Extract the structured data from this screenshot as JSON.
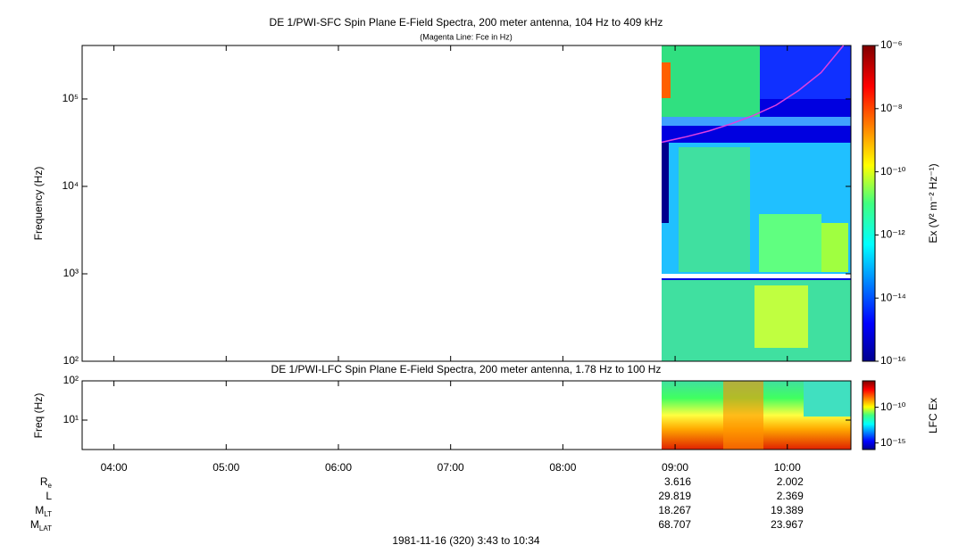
{
  "chart_data": [
    {
      "type": "spectrogram",
      "title": "DE 1/PWI-SFC  Spin Plane E-Field Spectra, 200 meter antenna, 104 Hz to 409 kHz",
      "subtitle": "(Magenta Line: Fce in Hz)",
      "y_label": "Frequency (Hz)",
      "log_y": true,
      "ylim": [
        100,
        409000
      ],
      "yticks": [
        {
          "value": 100,
          "label": "10²"
        },
        {
          "value": 1000,
          "label": "10³"
        },
        {
          "value": 10000,
          "label": "10⁴"
        },
        {
          "value": 100000,
          "label": "10⁵"
        }
      ],
      "colorbar_label": "Ex (V² m⁻² Hz⁻¹)",
      "colorbar_lim": [
        1e-16,
        1e-06
      ],
      "colorbar_ticks": [
        {
          "value": 1e-06,
          "label": "10⁻⁶"
        },
        {
          "value": 1e-08,
          "label": "10⁻⁸"
        },
        {
          "value": 1e-10,
          "label": "10⁻¹⁰"
        },
        {
          "value": 1e-12,
          "label": "10⁻¹²"
        },
        {
          "value": 1e-14,
          "label": "10⁻¹⁴"
        },
        {
          "value": 1e-16,
          "label": "10⁻¹⁶"
        }
      ],
      "line": {
        "color": "#e040e0",
        "x": [
          8.88,
          9.1,
          9.3,
          9.5,
          9.7,
          9.9,
          10.1,
          10.3,
          10.5
        ],
        "values": [
          32000,
          37000,
          43000,
          52000,
          65000,
          85000,
          125000,
          200000,
          409000
        ]
      }
    },
    {
      "type": "spectrogram",
      "title": "DE 1/PWI-LFC  Spin Plane E-Field Spectra, 200 meter antenna, 1.78 Hz to 100 Hz",
      "y_label": "Freq (Hz)",
      "log_y": true,
      "ylim": [
        1.78,
        100
      ],
      "yticks": [
        {
          "value": 10,
          "label": "10¹"
        },
        {
          "value": 100,
          "label": "10²"
        }
      ],
      "colorbar_label": "LFC Ex",
      "colorbar_lim": [
        1.2e-16,
        5e-07
      ],
      "colorbar_ticks": [
        {
          "value": 1e-10,
          "label": "10⁻¹⁰"
        },
        {
          "value": 1e-15,
          "label": "10⁻¹⁵"
        }
      ]
    }
  ],
  "time_axis": {
    "xlim": [
      3.7167,
      10.5667
    ],
    "xticks": [
      {
        "value": 4,
        "label": "04:00"
      },
      {
        "value": 5,
        "label": "05:00"
      },
      {
        "value": 6,
        "label": "06:00"
      },
      {
        "value": 7,
        "label": "07:00"
      },
      {
        "value": 8,
        "label": "08:00"
      },
      {
        "value": 9,
        "label": "09:00"
      },
      {
        "value": 10,
        "label": "10:00"
      }
    ]
  },
  "ephemeris": {
    "tick_indices": [
      5,
      6
    ],
    "rows": [
      {
        "label": "R",
        "subscript": "e",
        "values": [
          3.616,
          2.002
        ]
      },
      {
        "label": "L",
        "values": [
          29.819,
          2.369
        ]
      },
      {
        "label": "M",
        "subscript": "LT",
        "values": [
          18.267,
          19.389
        ]
      },
      {
        "label": "M",
        "subscript": "LAT",
        "values": [
          68.707,
          23.967
        ]
      }
    ]
  },
  "footer": "1981-11-16 (320) 3:43 to 10:34"
}
